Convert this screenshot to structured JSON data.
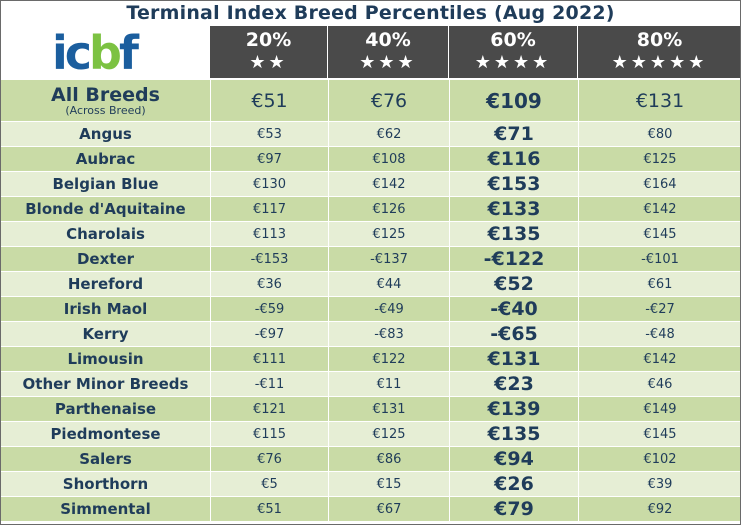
{
  "title": "Terminal Index Breed Percentiles (Aug 2022)",
  "logo": {
    "text_blue_1": "ic",
    "text_green": "b",
    "text_blue_2": "f"
  },
  "colors": {
    "header_bg": "#4a4a4a",
    "row_dark": "#c9dba6",
    "row_light": "#e6eed5",
    "text": "#1f3c5a",
    "logo_blue": "#1b5e9e",
    "logo_green": "#7cc242"
  },
  "columns": [
    {
      "pct": "20%",
      "stars": "★★"
    },
    {
      "pct": "40%",
      "stars": "★★★"
    },
    {
      "pct": "60%",
      "stars": "★★★★"
    },
    {
      "pct": "80%",
      "stars": "★★★★★"
    }
  ],
  "all_breeds": {
    "name": "All Breeds",
    "sub": "(Across Breed)",
    "values": [
      "€51",
      "€76",
      "€109",
      "€131"
    ]
  },
  "rows": [
    {
      "breed": "Angus",
      "values": [
        "€53",
        "€62",
        "€71",
        "€80"
      ]
    },
    {
      "breed": "Aubrac",
      "values": [
        "€97",
        "€108",
        "€116",
        "€125"
      ]
    },
    {
      "breed": "Belgian Blue",
      "values": [
        "€130",
        "€142",
        "€153",
        "€164"
      ]
    },
    {
      "breed": "Blonde d'Aquitaine",
      "values": [
        "€117",
        "€126",
        "€133",
        "€142"
      ]
    },
    {
      "breed": "Charolais",
      "values": [
        "€113",
        "€125",
        "€135",
        "€145"
      ]
    },
    {
      "breed": "Dexter",
      "values": [
        "-€153",
        "-€137",
        "-€122",
        "-€101"
      ]
    },
    {
      "breed": "Hereford",
      "values": [
        "€36",
        "€44",
        "€52",
        "€61"
      ]
    },
    {
      "breed": "Irish Maol",
      "values": [
        "-€59",
        "-€49",
        "-€40",
        "-€27"
      ]
    },
    {
      "breed": "Kerry",
      "values": [
        "-€97",
        "-€83",
        "-€65",
        "-€48"
      ]
    },
    {
      "breed": "Limousin",
      "values": [
        "€111",
        "€122",
        "€131",
        "€142"
      ]
    },
    {
      "breed": "Other Minor Breeds",
      "values": [
        "-€11",
        "€11",
        "€23",
        "€46"
      ]
    },
    {
      "breed": "Parthenaise",
      "values": [
        "€121",
        "€131",
        "€139",
        "€149"
      ]
    },
    {
      "breed": "Piedmontese",
      "values": [
        "€115",
        "€125",
        "€135",
        "€145"
      ]
    },
    {
      "breed": "Salers",
      "values": [
        "€76",
        "€86",
        "€94",
        "€102"
      ]
    },
    {
      "breed": "Shorthorn",
      "values": [
        "€5",
        "€15",
        "€26",
        "€39"
      ]
    },
    {
      "breed": "Simmental",
      "values": [
        "€51",
        "€67",
        "€79",
        "€92"
      ]
    }
  ]
}
